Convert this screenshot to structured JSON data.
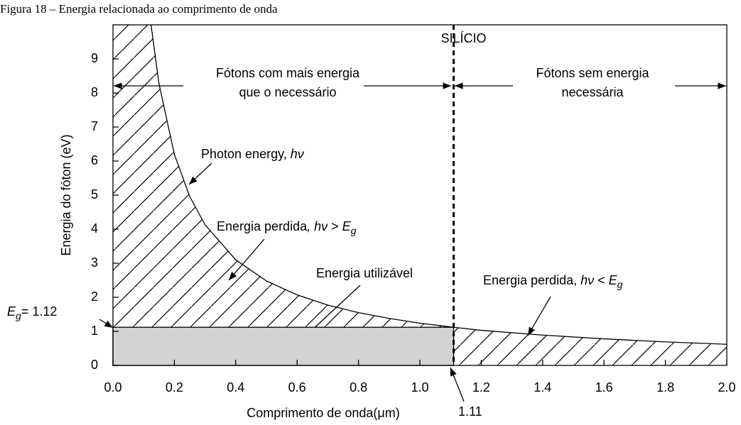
{
  "chart_data": {
    "type": "line",
    "caption": "Figura 18 – Energia relacionada ao comprimento de onda",
    "x_label": "Comprimento de onda(μm)",
    "y_label": "Energia do fóton (eV)",
    "x": [
      0.124,
      0.15,
      0.2,
      0.25,
      0.3,
      0.4,
      0.5,
      0.6,
      0.7,
      0.8,
      0.9,
      1.0,
      1.11,
      1.2,
      1.4,
      1.6,
      1.8,
      2.0
    ],
    "series": [
      {
        "name": "Photon energy",
        "color": "#000000",
        "values": [
          10,
          8.27,
          6.2,
          4.96,
          4.13,
          3.1,
          2.48,
          2.07,
          1.77,
          1.55,
          1.38,
          1.24,
          1.12,
          1.03,
          0.89,
          0.78,
          0.69,
          0.62
        ]
      }
    ],
    "xlim": [
      0,
      2.0
    ],
    "ylim": [
      0,
      10
    ],
    "xticks": [
      {
        "value": 0,
        "label": "0.0"
      },
      0.2,
      0.4,
      0.6,
      0.8,
      {
        "value": 1,
        "label": "1.0"
      },
      1.2,
      1.4,
      1.6,
      1.8,
      {
        "value": 2,
        "label": "2.0"
      }
    ],
    "yticks": [
      0,
      1,
      2,
      3,
      4,
      5,
      6,
      7,
      8,
      9
    ],
    "cutoff": 1.11,
    "cutoff_name": "SILÍCIO",
    "eg": 1.12,
    "usable_color": "#d3d3d3",
    "eg_parts": [
      {
        "text": "E",
        "style": "italic"
      },
      {
        "text": "g",
        "style": "sub"
      },
      {
        "text": "= 1.12"
      }
    ],
    "left_region": [
      "Fótons com mais energia",
      "que o necessário"
    ],
    "right_region": [
      "Fótons sem energia",
      "necessária"
    ],
    "annotations": [
      {
        "parts": [
          {
            "text": "Photon energy, "
          },
          {
            "text": "hν",
            "style": "italic"
          }
        ]
      },
      {
        "parts": [
          {
            "text": "Energia perdida"
          },
          {
            "text": ", hν",
            "style": "italic"
          },
          {
            "text": " > "
          },
          {
            "text": "E",
            "style": "italic"
          },
          {
            "text": "g",
            "style": "sub"
          }
        ]
      },
      {
        "parts": [
          {
            "text": "Energia utilizável"
          }
        ]
      },
      {
        "parts": [
          {
            "text": "Energia perdida, "
          },
          {
            "text": "hν",
            "style": "italic"
          },
          {
            "text": " < "
          },
          {
            "text": "E",
            "style": "italic"
          },
          {
            "text": "g",
            "style": "sub"
          }
        ]
      }
    ]
  }
}
